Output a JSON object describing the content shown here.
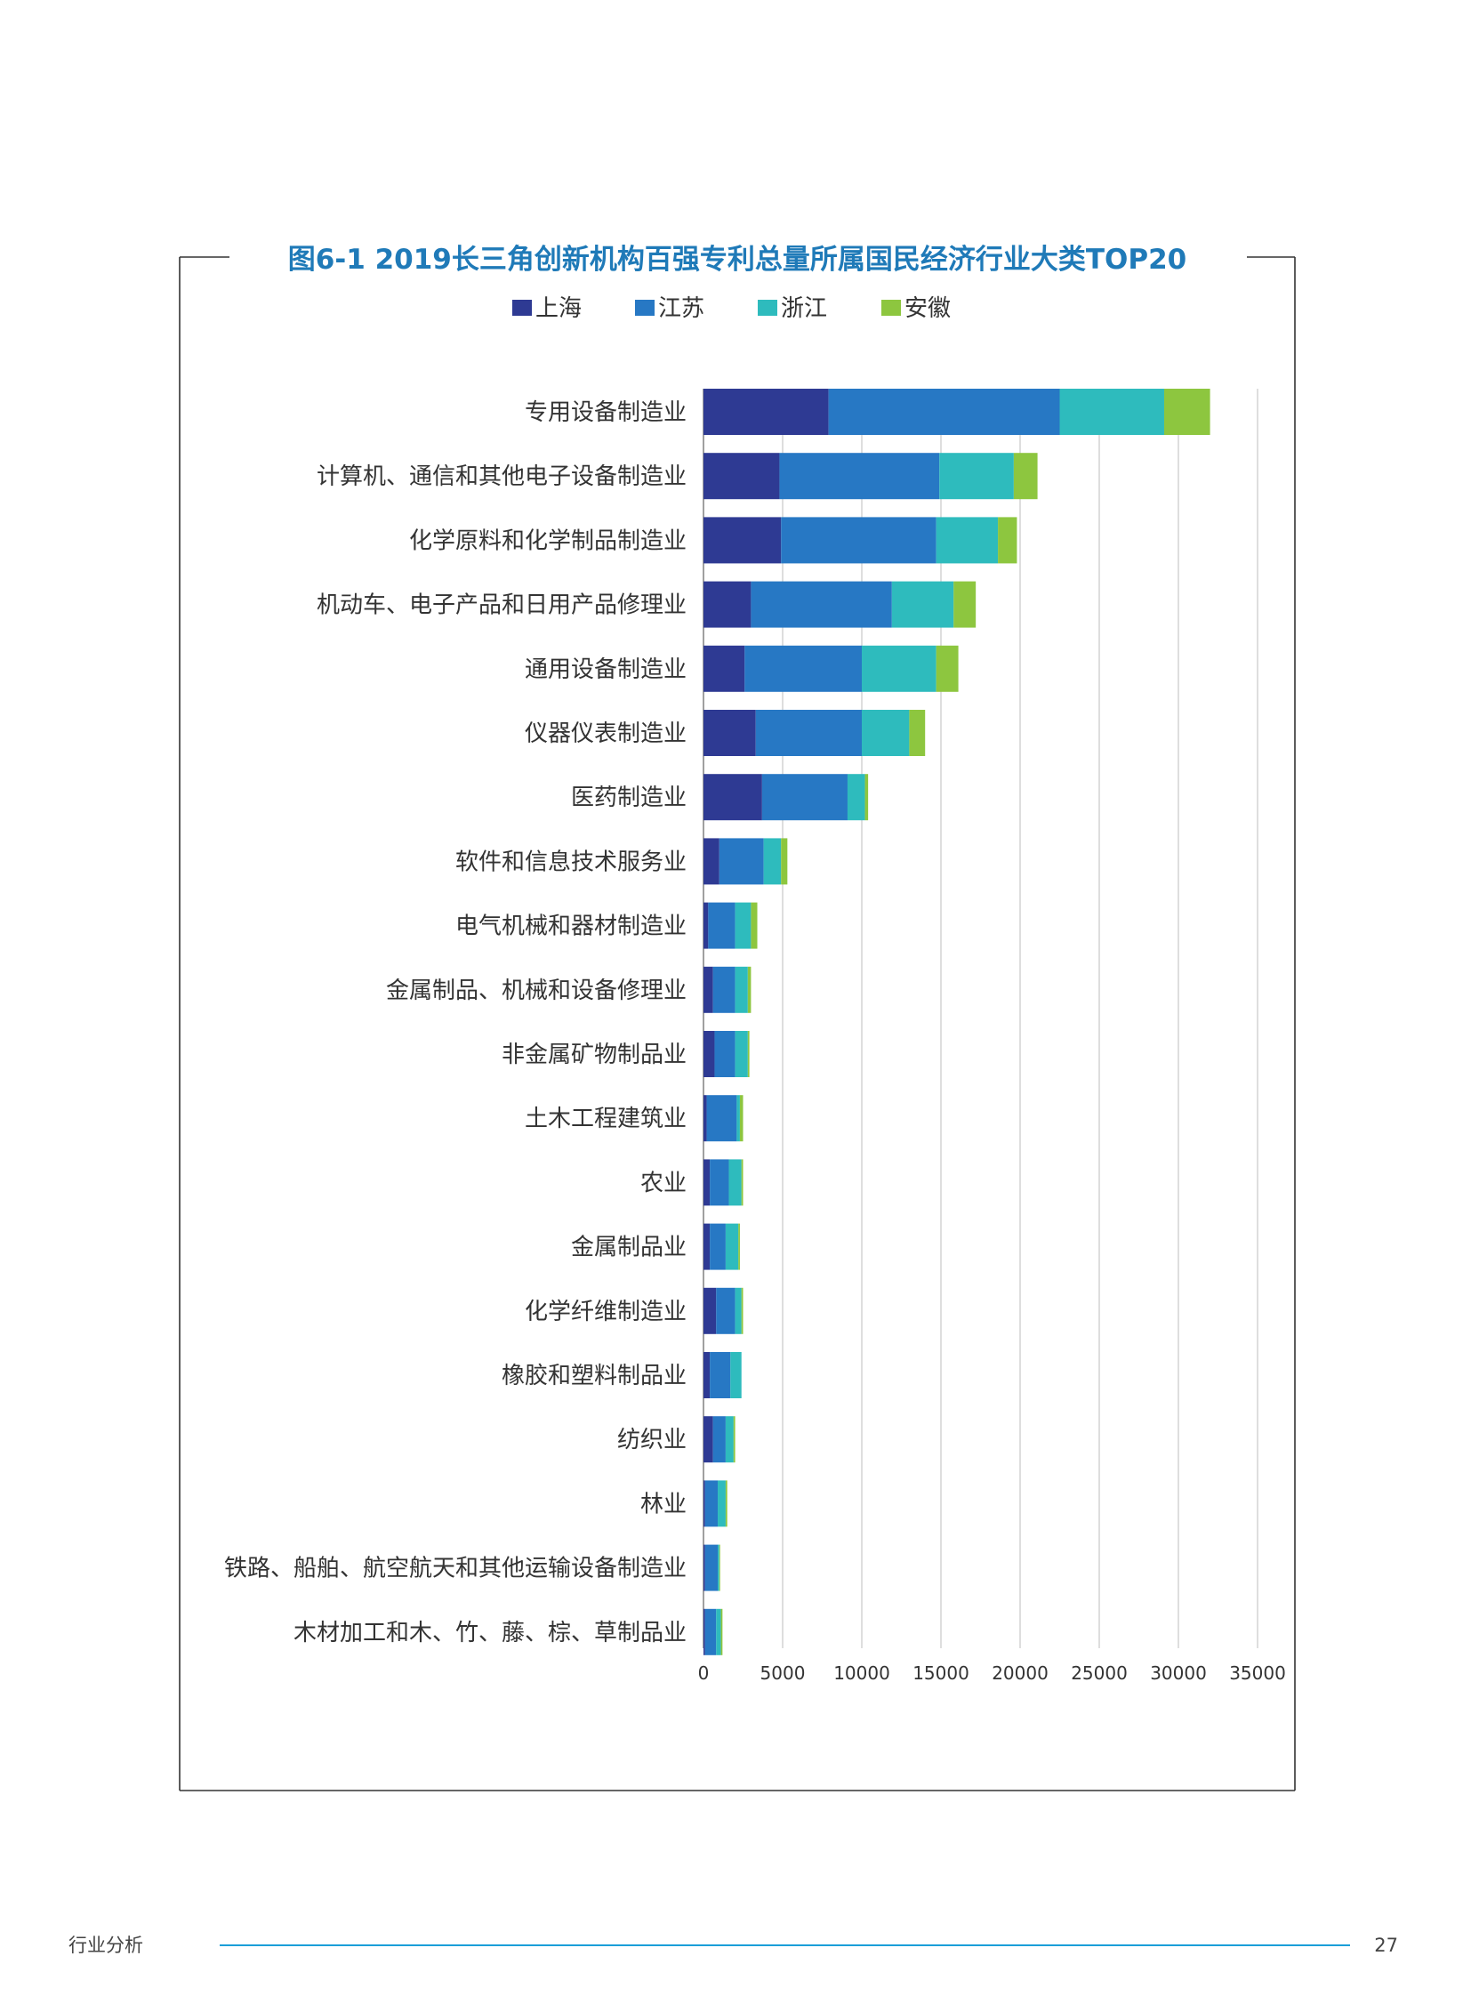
{
  "chart_data": {
    "type": "bar",
    "orientation": "horizontal",
    "stacked": true,
    "title": "图6-1  2019长三角创新机构百强专利总量所属国民经济行业大类TOP20",
    "xlabel": "",
    "ylabel": "",
    "xlim": [
      0,
      35000
    ],
    "xticks": [
      0,
      5000,
      10000,
      15000,
      20000,
      25000,
      30000,
      35000
    ],
    "grid": true,
    "legend_position": "top-center",
    "categories": [
      "专用设备制造业",
      "计算机、通信和其他电子设备制造业",
      "化学原料和化学制品制造业",
      "机动车、电子产品和日用产品修理业",
      "通用设备制造业",
      "仪器仪表制造业",
      "医药制造业",
      "软件和信息技术服务业",
      "电气机械和器材制造业",
      "金属制品、机械和设备修理业",
      "非金属矿物制品业",
      "土木工程建筑业",
      "农业",
      "金属制品业",
      "化学纤维制造业",
      "橡胶和塑料制品业",
      "纺织业",
      "林业",
      "铁路、船舶、航空航天和其他运输设备制造业",
      "木材加工和木、竹、藤、棕、草制品业"
    ],
    "series": [
      {
        "name": "上海",
        "color": "#2e3a93",
        "values": [
          7900,
          4800,
          4900,
          3000,
          2600,
          3300,
          3700,
          1000,
          300,
          600,
          700,
          200,
          400,
          400,
          800,
          400,
          600,
          100,
          100,
          100
        ]
      },
      {
        "name": "江苏",
        "color": "#2778c4",
        "values": [
          14600,
          10100,
          9800,
          8900,
          7400,
          6700,
          5400,
          2800,
          1700,
          1400,
          1300,
          1900,
          1200,
          1000,
          1200,
          1300,
          800,
          800,
          800,
          700
        ]
      },
      {
        "name": "浙江",
        "color": "#2ebbbd",
        "values": [
          6600,
          4700,
          3900,
          3900,
          4700,
          3000,
          1100,
          1100,
          1000,
          800,
          800,
          200,
          800,
          800,
          400,
          700,
          500,
          500,
          100,
          300
        ]
      },
      {
        "name": "安徽",
        "color": "#8dc63f",
        "values": [
          2900,
          1500,
          1200,
          1400,
          1400,
          1000,
          200,
          400,
          400,
          200,
          100,
          200,
          100,
          100,
          100,
          0,
          100,
          100,
          50,
          100
        ]
      }
    ]
  },
  "footer": {
    "section": "行业分析",
    "page_number": "27"
  },
  "colors": {
    "title": "#1f7ab8",
    "frame": "#333333",
    "grid": "#c8c8c8",
    "footer_line": "#1b9fd8",
    "label": "#333333"
  }
}
